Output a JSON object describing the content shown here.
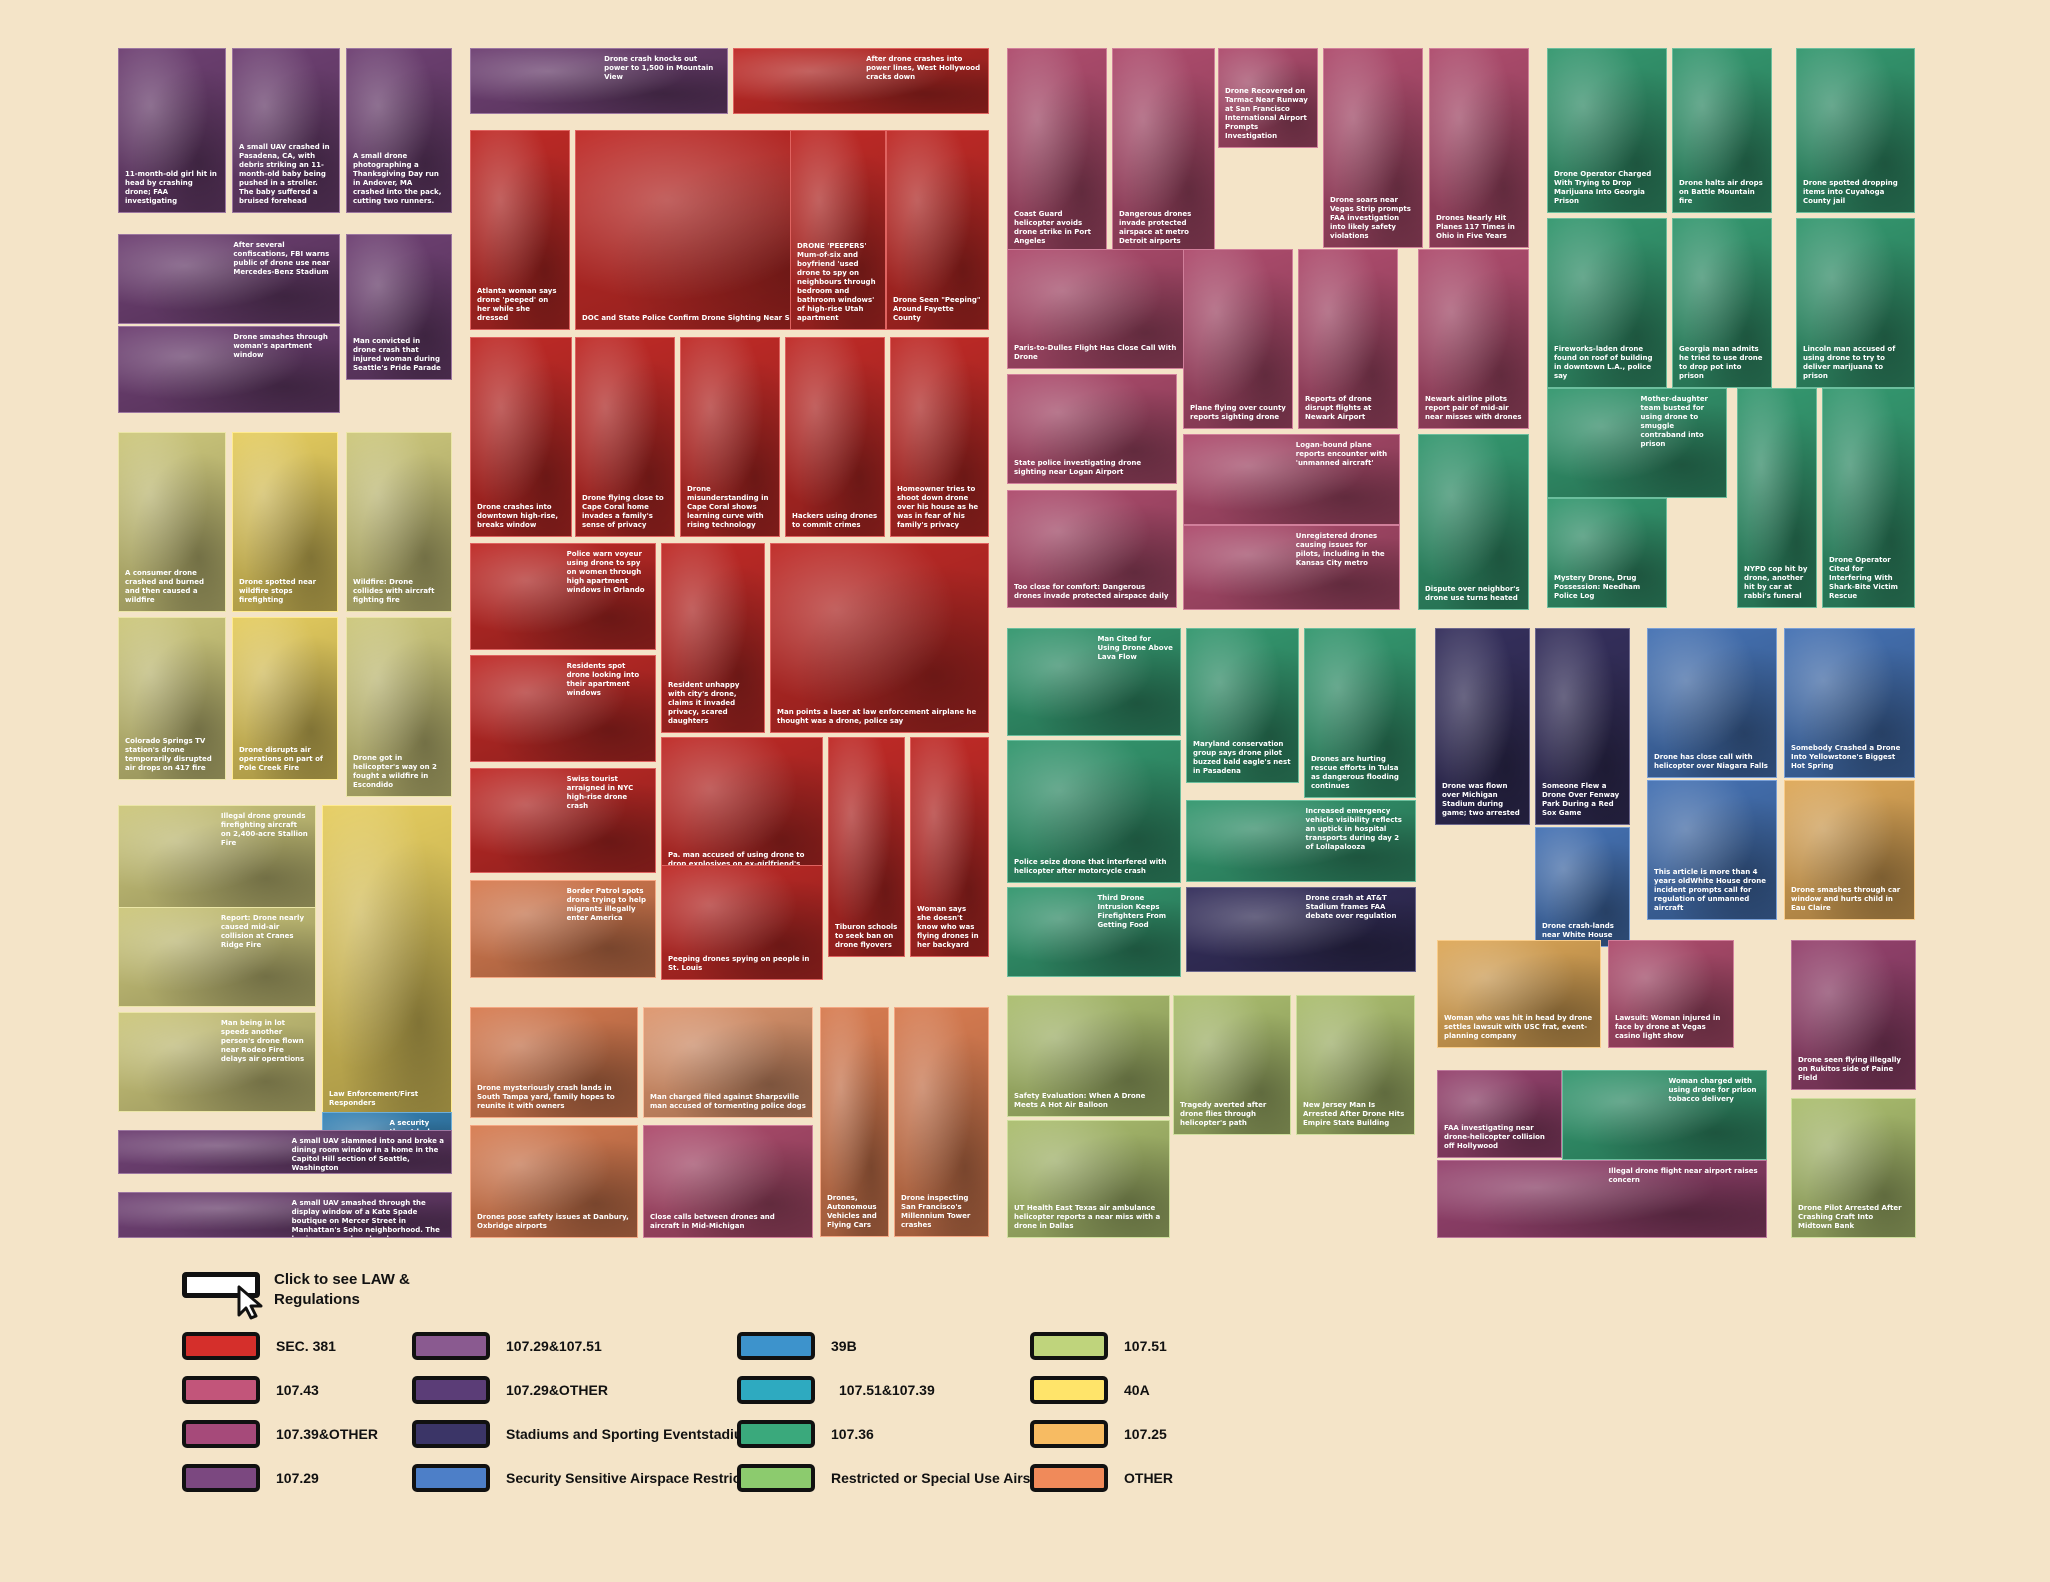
{
  "legend": {
    "click_hint": "Click to see LAW & Regulations",
    "items": [
      {
        "label": "SEC. 381",
        "color": "#d52f2b"
      },
      {
        "label": "107.43",
        "color": "#c2557a"
      },
      {
        "label": "107.39&OTHER",
        "color": "#a64a7a"
      },
      {
        "label": "107.29",
        "color": "#7b4880"
      },
      {
        "label": "107.29&107.51",
        "color": "#8a5a90"
      },
      {
        "label": "107.29&OTHER",
        "color": "#5b3d77"
      },
      {
        "label": "Stadiums and Sporting Eventstadiums",
        "color": "#3b3567"
      },
      {
        "label": "Security Sensitive Airspace Restrictions",
        "color": "#4d7fc8"
      },
      {
        "label": "39B",
        "color": "#3d93cc"
      },
      {
        "label": "107.51&107.39",
        "color": "#2eaac0"
      },
      {
        "label": "107.36",
        "color": "#3aa97c"
      },
      {
        "label": "Restricted or Special Use Airspace",
        "color": "#8ccb6e"
      },
      {
        "label": "107.51",
        "color": "#bfd47c"
      },
      {
        "label": "40A",
        "color": "#ffe46a"
      },
      {
        "label": "107.25",
        "color": "#f7bb62"
      },
      {
        "label": "OTHER",
        "color": "#f08a5a"
      }
    ]
  },
  "tiles": [
    {
      "c": "#7b4880",
      "t": "11-month-old girl hit in head by crashing drone; FAA investigating"
    },
    {
      "c": "#7b4880",
      "t": "A small UAV crashed in Pasadena, CA, with debris striking an 11-month-old baby being pushed in a stroller. The baby suffered a bruised forehead"
    },
    {
      "c": "#7b4880",
      "t": "A small drone photographing a Thanksgiving Day run in Andover, MA crashed into the pack, cutting two runners."
    },
    {
      "c": "#7b4880",
      "t": "After several confiscations, FBI warns public of drone use near Mercedes-Benz Stadium"
    },
    {
      "c": "#7b4880",
      "t": "Man convicted in drone crash that injured woman during Seattle's Pride Parade"
    },
    {
      "c": "#7b4880",
      "t": "Drone smashes through woman's apartment window"
    },
    {
      "c": "#e4de8a",
      "t": "A consumer drone crashed and burned and then caused a wildfire"
    },
    {
      "c": "#ffe46a",
      "t": "Drone spotted near wildfire stops firefighting"
    },
    {
      "c": "#e4de8a",
      "t": "Wildfire: Drone collides with aircraft fighting fire"
    },
    {
      "c": "#e4de8a",
      "t": "Colorado Springs TV station's drone temporarily disrupted air drops on 417 fire"
    },
    {
      "c": "#ffe46a",
      "t": "Drone disrupts air operations on part of Pole Creek Fire"
    },
    {
      "c": "#e4de8a",
      "t": "Drone got in helicopter's way on 2 fought a wildfire in Escondido"
    },
    {
      "c": "#e4de8a",
      "t": "Illegal drone grounds firefighting aircraft on 2,400-acre Stallion Fire"
    },
    {
      "c": "#ffe46a",
      "t": "Law Enforcement/First Responders"
    },
    {
      "c": "#e4de8a",
      "t": "Report: Drone nearly caused mid-air collision at Cranes Ridge Fire"
    },
    {
      "c": "#e4de8a",
      "t": "Man being in lot speeds another person's drone flown near Rodeo Fire delays air operations"
    },
    {
      "c": "#3d93cc",
      "t": "A security threat lurks in the sky around CIA"
    },
    {
      "c": "#7b4880",
      "t": "A small UAV slammed into and broke a dining room window in a home in the Capitol Hill section of Seattle, Washington"
    },
    {
      "c": "#7b4880",
      "t": "A small UAV smashed through the display window of a Kate Spade boutique on Mercer Street in Manhattan's Soho neighborhood. The business was closed and no one was hurt."
    },
    {
      "c": "#7b4880",
      "t": "Drone crash knocks out power to 1,500 in Mountain View"
    },
    {
      "c": "#d52f2b",
      "t": "After drone crashes into power lines, West Hollywood cracks down"
    },
    {
      "c": "#d52f2b",
      "t": "Atlanta woman says drone 'peeped' on her while she dressed"
    },
    {
      "c": "#d52f2b",
      "t": "DOC and State Police Confirm Drone Sighting Near SCI Frackville"
    },
    {
      "c": "#d52f2b",
      "t": "DRONE 'PEEPERS' Mum-of-six and boyfriend 'used drone to spy on neighbours through bedroom and bathroom windows' of high-rise Utah apartment"
    },
    {
      "c": "#d52f2b",
      "t": "Drone Seen \"Peeping\" Around Fayette County"
    },
    {
      "c": "#d52f2b",
      "t": "Drone crashes into downtown high-rise, breaks window"
    },
    {
      "c": "#d52f2b",
      "t": "Drone flying close to Cape Coral home invades a family's sense of privacy"
    },
    {
      "c": "#d52f2b",
      "t": "Drone misunderstanding in Cape Coral shows learning curve with rising technology"
    },
    {
      "c": "#d52f2b",
      "t": "Hackers using drones to commit crimes"
    },
    {
      "c": "#d52f2b",
      "t": "Homeowner tries to shoot down drone over his house as he was in fear of his family's privacy"
    },
    {
      "c": "#d52f2b",
      "t": "Police warn voyeur using drone to spy on women through high apartment windows in Orlando"
    },
    {
      "c": "#d52f2b",
      "t": "Resident unhappy with city's drone, claims it invaded privacy, scared daughters"
    },
    {
      "c": "#d52f2b",
      "t": "Man points a laser at law enforcement airplane he thought was a drone, police say"
    },
    {
      "c": "#d52f2b",
      "t": "Residents spot drone looking into their apartment windows"
    },
    {
      "c": "#d52f2b",
      "t": "Pa. man accused of using drone to drop explosives on ex-girlfriend's property"
    },
    {
      "c": "#d52f2b",
      "t": "Tiburon schools to seek ban on drone flyovers"
    },
    {
      "c": "#d52f2b",
      "t": "Woman says she doesn't know who was flying drones in her backyard"
    },
    {
      "c": "#d52f2b",
      "t": "Swiss tourist arraigned in NYC high-rise drone crash"
    },
    {
      "c": "#d52f2b",
      "t": "Peeping drones spying on people in St. Louis"
    },
    {
      "c": "#f08a5a",
      "t": "Border Patrol spots drone trying to help migrants illegally enter America"
    },
    {
      "c": "#f08a5a",
      "t": "Drone mysteriously crash lands in South Tampa yard, family hopes to reunite it with owners"
    },
    {
      "c": "#f7a77a",
      "t": "Man charged filed against Sharpsville man accused of tormenting police dogs"
    },
    {
      "c": "#f08a5a",
      "t": "Drones, Autonomous Vehicles and Flying Cars"
    },
    {
      "c": "#f08a5a",
      "t": "Drone inspecting San Francisco's Millennium Tower crashes"
    },
    {
      "c": "#f08a5a",
      "t": "Drones pose safety issues at Danbury, Oxbridge airports"
    },
    {
      "c": "#c2557a",
      "t": "Close calls between drones and aircraft in Mid-Michigan"
    },
    {
      "c": "#c2557a",
      "t": "Coast Guard helicopter avoids drone strike in Port Angeles"
    },
    {
      "c": "#c2557a",
      "t": "Dangerous drones invade protected airspace at metro Detroit airports"
    },
    {
      "c": "#c2557a",
      "t": "Drone Recovered on Tarmac Near Runway at San Francisco International Airport Prompts Investigation"
    },
    {
      "c": "#c2557a",
      "t": "Drone soars near Vegas Strip prompts FAA investigation into likely safety violations"
    },
    {
      "c": "#c2557a",
      "t": "Drones Nearly Hit Planes 117 Times in Ohio in Five Years"
    },
    {
      "c": "#c2557a",
      "t": "Paris-to-Dulles Flight Has Close Call With Drone"
    },
    {
      "c": "#c2557a",
      "t": "Plane flying over county reports sighting drone"
    },
    {
      "c": "#c2557a",
      "t": "Reports of drone disrupt flights at Newark Airport"
    },
    {
      "c": "#c2557a",
      "t": "Newark airline pilots report pair of mid-air near misses with drones"
    },
    {
      "c": "#c2557a",
      "t": "State police investigating drone sighting near Logan Airport"
    },
    {
      "c": "#c2557a",
      "t": "Logan-bound plane reports encounter with 'unmanned aircraft'"
    },
    {
      "c": "#c2557a",
      "t": "Too close for comfort: Dangerous drones invade protected airspace daily"
    },
    {
      "c": "#c2557a",
      "t": "Unregistered drones causing issues for pilots, including in the Kansas City metro"
    },
    {
      "c": "#3aa97c",
      "t": "Dispute over neighbor's drone use turns heated"
    },
    {
      "c": "#3aa97c",
      "t": "Drone Operator Charged With Trying to Drop Marijuana Into Georgia Prison"
    },
    {
      "c": "#3aa97c",
      "t": "Drone halts air drops on Battle Mountain fire"
    },
    {
      "c": "#3aa97c",
      "t": "Drone spotted dropping items into Cuyahoga County jail"
    },
    {
      "c": "#3aa97c",
      "t": "Fireworks-laden drone found on roof of building in downtown L.A., police say"
    },
    {
      "c": "#3aa97c",
      "t": "Georgia man admits he tried to use drone to drop pot into prison"
    },
    {
      "c": "#3aa97c",
      "t": "Lincoln man accused of using drone to try to deliver marijuana to prison"
    },
    {
      "c": "#3aa97c",
      "t": "Mother-daughter team busted for using drone to smuggle contraband into prison"
    },
    {
      "c": "#3aa97c",
      "t": "Mystery Drone, Drug Possession: Needham Police Log"
    },
    {
      "c": "#3aa97c",
      "t": "NYPD cop hit by drone, another hit by car at rabbi's funeral"
    },
    {
      "c": "#3aa97c",
      "t": "Drone Operator Cited for Interfering With Shark-Bite Victim Rescue"
    },
    {
      "c": "#3aa97c",
      "t": "Man Cited for Using Drone Above Lava Flow"
    },
    {
      "c": "#3aa97c",
      "t": "Maryland conservation group says drone pilot buzzed bald eagle's nest in Pasadena"
    },
    {
      "c": "#3aa97c",
      "t": "Drones are hurting rescue efforts in Tulsa as dangerous flooding continues"
    },
    {
      "c": "#3aa97c",
      "t": "Police seize drone that interfered with helicopter after motorcycle crash"
    },
    {
      "c": "#3aa97c",
      "t": "Increased emergency vehicle visibility reflects an uptick in hospital transports during day 2 of Lollapalooza"
    },
    {
      "c": "#3aa97c",
      "t": "Third Drone Intrusion Keeps Firefighters From Getting Food"
    },
    {
      "c": "#3b3567",
      "t": "Drone crash at AT&T Stadium frames FAA debate over regulation"
    },
    {
      "c": "#3b3567",
      "t": "Drone was flown over Michigan Stadium during game; two arrested"
    },
    {
      "c": "#3b3567",
      "t": "Someone Flew a Drone Over Fenway Park During a Red Sox Game"
    },
    {
      "c": "#4d7fc8",
      "t": "Drone crash-lands near White House"
    },
    {
      "c": "#4d7fc8",
      "t": "Drone has close call with helicopter over Niagara Falls"
    },
    {
      "c": "#4d7fc8",
      "t": "Somebody Crashed a Drone Into Yellowstone's Biggest Hot Spring"
    },
    {
      "c": "#4d7fc8",
      "t": "This article is more than 4 years oldWhite House drone incident prompts call for regulation of unmanned aircraft"
    },
    {
      "c": "#f7bb62",
      "t": "Drone smashes through car window and hurts child in Eau Claire"
    },
    {
      "c": "#f7bb62",
      "t": "Woman who was hit in head by drone settles lawsuit with USC frat, event-planning company"
    },
    {
      "c": "#c2557a",
      "t": "Lawsuit: Woman injured in face by drone at Vegas casino light show"
    },
    {
      "c": "#a64a7a",
      "t": "Drone seen flying illegally on Rukitos side of Paine Field"
    },
    {
      "c": "#a64a7a",
      "t": "FAA investigating near drone-helicopter collision off Hollywood"
    },
    {
      "c": "#a64a7a",
      "t": "Illegal drone flight near airport raises concern"
    },
    {
      "c": "#3aa97c",
      "t": "Woman charged with using drone for prison tobacco delivery"
    },
    {
      "c": "#bfd47c",
      "t": "Drone Pilot Arrested After Crashing Craft Into Midtown Bank"
    },
    {
      "c": "#bfd47c",
      "t": "Safety Evaluation: When A Drone Meets A Hot Air Balloon"
    },
    {
      "c": "#bfd47c",
      "t": "Tragedy averted after drone flies through helicopter's path"
    },
    {
      "c": "#bfd47c",
      "t": "New Jersey Man Is Arrested After Drone Hits Empire State Building"
    },
    {
      "c": "#bfd47c",
      "t": "UT Health East Texas air ambulance helicopter reports a near miss with a drone in Dallas"
    }
  ]
}
